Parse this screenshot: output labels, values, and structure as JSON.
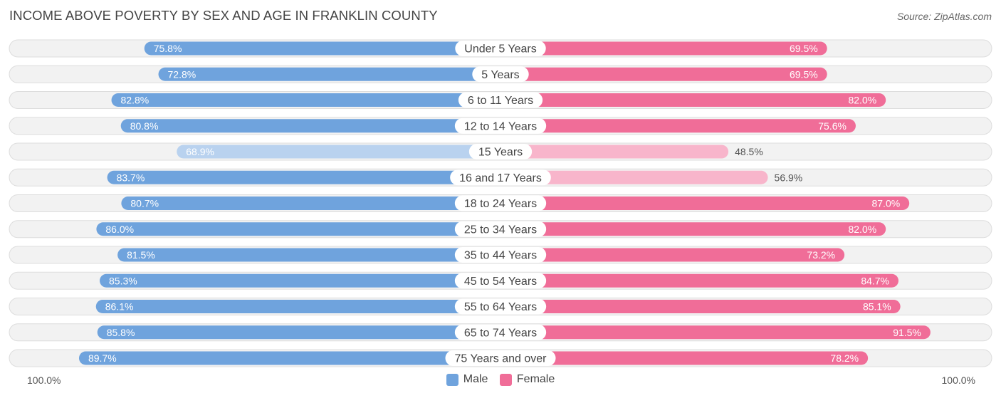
{
  "title": "INCOME ABOVE POVERTY BY SEX AND AGE IN FRANKLIN COUNTY",
  "source": "Source: ZipAtlas.com",
  "axis": {
    "left_label": "100.0%",
    "right_label": "100.0%"
  },
  "legend": {
    "male_label": "Male",
    "female_label": "Female"
  },
  "colors": {
    "male_strong": "#6fa3dd",
    "male_light": "#b9d2ef",
    "female_strong": "#f06d98",
    "female_light": "#f8b5cb",
    "row_bg": "#f2f2f2",
    "row_border": "#dddddd"
  },
  "chart_data": {
    "type": "bar",
    "orientation": "horizontal-diverging",
    "title": "INCOME ABOVE POVERTY BY SEX AND AGE IN FRANKLIN COUNTY",
    "xlim": [
      0,
      100
    ],
    "unit": "%",
    "categories": [
      "Under 5 Years",
      "5 Years",
      "6 to 11 Years",
      "12 to 14 Years",
      "15 Years",
      "16 and 17 Years",
      "18 to 24 Years",
      "25 to 34 Years",
      "35 to 44 Years",
      "45 to 54 Years",
      "55 to 64 Years",
      "65 to 74 Years",
      "75 Years and over"
    ],
    "series": [
      {
        "name": "Male",
        "values": [
          75.8,
          72.8,
          82.8,
          80.8,
          68.9,
          83.7,
          80.7,
          86.0,
          81.5,
          85.3,
          86.1,
          85.8,
          89.7
        ],
        "labels": [
          "75.8%",
          "72.8%",
          "82.8%",
          "80.8%",
          "68.9%",
          "83.7%",
          "80.7%",
          "86.0%",
          "81.5%",
          "85.3%",
          "86.1%",
          "85.8%",
          "89.7%"
        ]
      },
      {
        "name": "Female",
        "values": [
          69.5,
          69.5,
          82.0,
          75.6,
          48.5,
          56.9,
          87.0,
          82.0,
          73.2,
          84.7,
          85.1,
          91.5,
          78.2
        ],
        "labels": [
          "69.5%",
          "69.5%",
          "82.0%",
          "75.6%",
          "48.5%",
          "56.9%",
          "87.0%",
          "82.0%",
          "73.2%",
          "84.7%",
          "85.1%",
          "91.5%",
          "78.2%"
        ]
      }
    ]
  }
}
